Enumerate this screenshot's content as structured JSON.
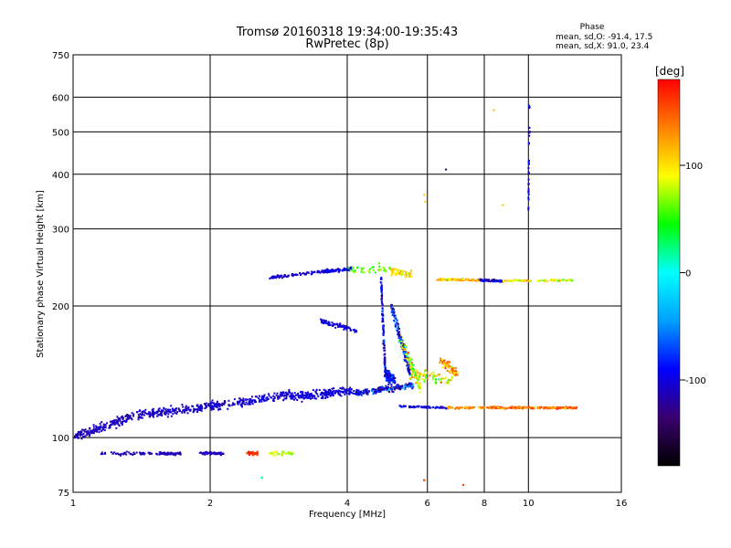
{
  "chart_data": {
    "type": "scatter",
    "title": "Tromsø 20160318 19:34:00-19:35:43",
    "subtitle": "RwPretec (8p)",
    "xlabel": "Frequency [MHz]",
    "ylabel": "Stationary phase Virtual Height [km]",
    "x_scale": "log",
    "y_scale": "log",
    "xlim": [
      1,
      16
    ],
    "ylim": [
      75,
      750
    ],
    "x_ticks": [
      1,
      2,
      4,
      6,
      8,
      10,
      16
    ],
    "y_ticks": [
      75,
      100,
      200,
      300,
      400,
      500,
      600,
      750
    ],
    "grid": true,
    "phase_stats": {
      "heading": "Phase",
      "line_o": "mean, sd,O: -91.4, 17.5",
      "line_x": "mean, sd,X:  91.0, 23.4"
    },
    "colorbar": {
      "label": "[deg]",
      "range": [
        -180,
        180
      ],
      "ticks": [
        100,
        0,
        -100
      ],
      "tick_labels": [
        "100",
        "0",
        "-100"
      ],
      "colormap": [
        "#000000",
        "#3b0070",
        "#0000ff",
        "#00a0ff",
        "#00ffff",
        "#00ff00",
        "#ffff00",
        "#ff8000",
        "#ff0000"
      ]
    },
    "series": [
      {
        "seg": [
          [
            1.0,
            100,
            1.35,
            112,
            -110
          ],
          [
            1.35,
            112,
            2.0,
            118,
            -108
          ],
          [
            2.0,
            118,
            3.0,
            125,
            -105
          ],
          [
            3.0,
            124,
            4.1,
            128,
            -100
          ]
        ],
        "n": 720,
        "jitter": 0.035,
        "spread": 20
      },
      {
        "seg": [
          [
            4.1,
            126,
            5.6,
            132,
            -95
          ]
        ],
        "n": 180,
        "jitter": 0.025,
        "spread": 90
      },
      {
        "seg": [
          [
            1.15,
            92,
            1.55,
            92,
            -110
          ],
          [
            1.55,
            92,
            1.75,
            92,
            -112
          ],
          [
            1.9,
            92,
            2.15,
            92,
            -108
          ]
        ],
        "n": 150,
        "jitter": 0.012,
        "spread": 25
      },
      {
        "seg": [
          [
            2.4,
            92,
            2.55,
            92,
            160
          ],
          [
            2.7,
            92,
            3.1,
            92,
            80
          ]
        ],
        "n": 60,
        "jitter": 0.015,
        "spread": 40
      },
      {
        "seg": [
          [
            2.7,
            232,
            3.6,
            240,
            -105
          ],
          [
            3.6,
            240,
            4.1,
            243,
            -100
          ]
        ],
        "n": 170,
        "jitter": 0.012,
        "spread": 20
      },
      {
        "seg": [
          [
            4.0,
            240,
            5.0,
            245,
            60
          ],
          [
            5.0,
            240,
            5.6,
            235,
            100
          ]
        ],
        "n": 90,
        "jitter": 0.03,
        "spread": 40
      },
      {
        "seg": [
          [
            4.75,
            230,
            4.85,
            140,
            -95
          ],
          [
            4.85,
            140,
            5.1,
            135,
            -90
          ]
        ],
        "n": 240,
        "jitter": 0.04,
        "spread": 60
      },
      {
        "seg": [
          [
            5.0,
            200,
            5.5,
            140,
            -90
          ],
          [
            5.2,
            170,
            5.8,
            130,
            80
          ]
        ],
        "n": 260,
        "jitter": 0.05,
        "spread": 100
      },
      {
        "seg": [
          [
            5.5,
            140,
            6.8,
            135,
            90
          ],
          [
            6.4,
            150,
            7.0,
            140,
            120
          ]
        ],
        "n": 140,
        "jitter": 0.04,
        "spread": 90
      },
      {
        "seg": [
          [
            3.5,
            185,
            4.2,
            175,
            -100
          ]
        ],
        "n": 70,
        "jitter": 0.02,
        "spread": 15
      },
      {
        "seg": [
          [
            5.2,
            118,
            6.6,
            117,
            -100
          ],
          [
            6.6,
            117,
            7.6,
            117,
            130
          ]
        ],
        "n": 120,
        "jitter": 0.008,
        "spread": 35
      },
      {
        "seg": [
          [
            7.8,
            117,
            12.8,
            117,
            140
          ]
        ],
        "n": 200,
        "jitter": 0.008,
        "spread": 50
      },
      {
        "seg": [
          [
            6.3,
            230,
            7.8,
            229,
            110
          ],
          [
            7.8,
            229,
            8.8,
            228,
            -105
          ],
          [
            8.8,
            228,
            12.5,
            229,
            90
          ]
        ],
        "n": 280,
        "jitter": 0.008,
        "spread": 60
      },
      {
        "seg": [
          [
            10.0,
            330,
            10.05,
            575,
            -95
          ]
        ],
        "n": 30,
        "jitter": 0.004,
        "spread": 30
      },
      {
        "seg": [
          [
            3.9,
            480,
            3.95,
            480,
            -100
          ],
          [
            3.65,
            430,
            3.7,
            430,
            -100
          ],
          [
            3.7,
            360,
            3.72,
            350,
            110
          ],
          [
            5.9,
            360,
            5.95,
            340,
            110
          ],
          [
            6.5,
            620,
            6.5,
            620,
            160
          ],
          [
            7.3,
            690,
            7.3,
            690,
            60
          ],
          [
            8.4,
            560,
            8.4,
            560,
            120
          ],
          [
            6.6,
            410,
            6.6,
            410,
            -150
          ],
          [
            8.8,
            340,
            8.8,
            340,
            110
          ],
          [
            8.0,
            83,
            8.0,
            83,
            -120
          ],
          [
            5.9,
            80,
            5.9,
            80,
            150
          ],
          [
            7.2,
            78,
            7.2,
            78,
            160
          ],
          [
            2.6,
            81,
            2.6,
            81,
            20
          ]
        ],
        "n": 13,
        "jitter": 0.003,
        "spread": 5
      }
    ]
  }
}
